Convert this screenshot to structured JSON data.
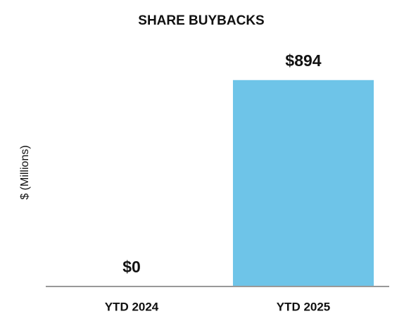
{
  "chart_data": {
    "type": "bar",
    "title": "SHARE BUYBACKS",
    "y_label": "$ (Millions)",
    "categories": [
      "YTD 2024",
      "YTD 2025"
    ],
    "values": [
      0,
      894
    ],
    "value_labels": [
      "$0",
      "$894"
    ],
    "color": "#6ec4e8",
    "ylim": [
      0,
      1000
    ]
  }
}
